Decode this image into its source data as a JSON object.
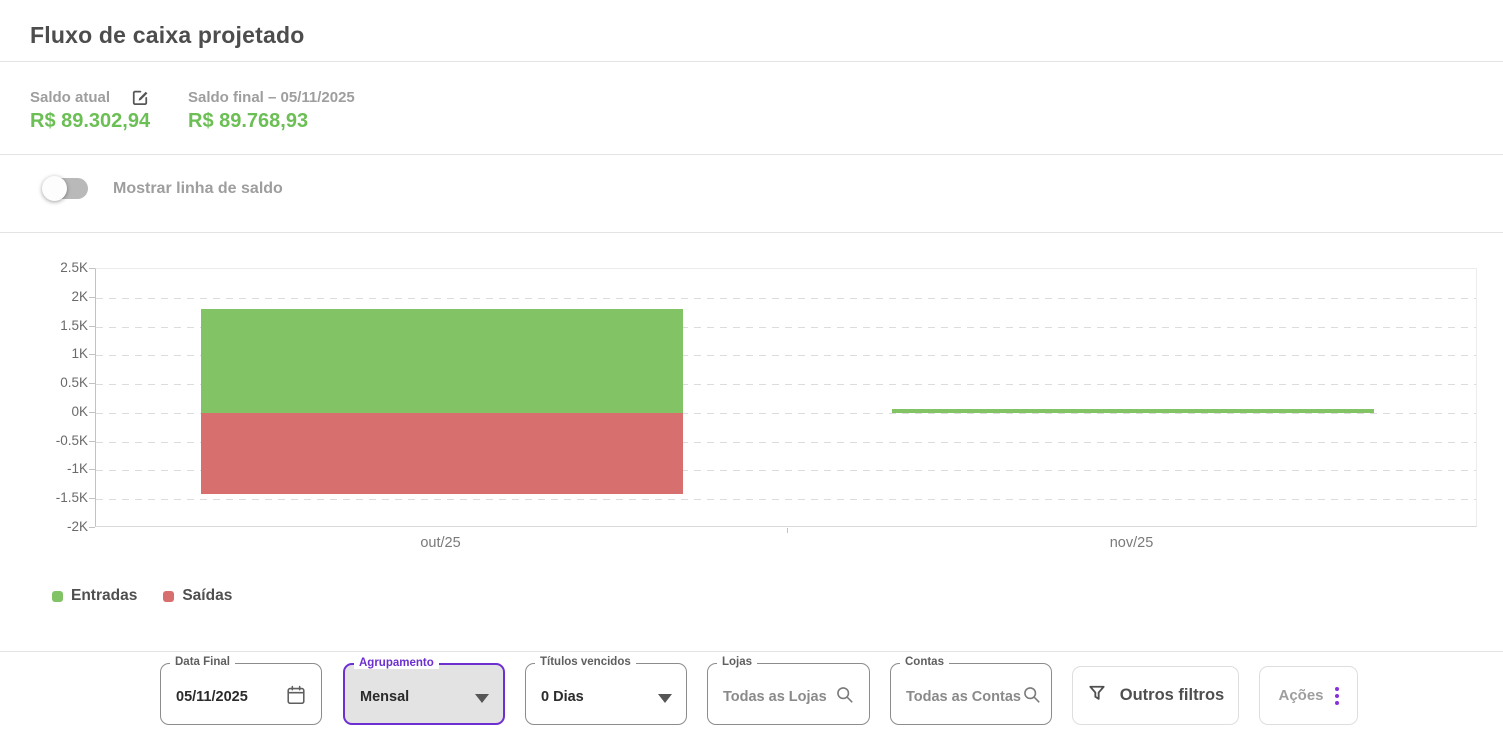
{
  "header": {
    "title": "Fluxo de caixa projetado"
  },
  "balances": {
    "current": {
      "label": "Saldo atual",
      "value": "R$ 89.302,94",
      "edit_icon": "edit-square-icon"
    },
    "final": {
      "label": "Saldo final – 05/11/2025",
      "value": "R$ 89.768,93"
    }
  },
  "balance_toggle": {
    "label": "Mostrar linha de saldo",
    "checked": false
  },
  "chart_data": {
    "type": "bar",
    "categories": [
      "out/25",
      "nov/25"
    ],
    "series": [
      {
        "name": "Entradas",
        "color": "#82c366",
        "values": [
          1805,
          75
        ]
      },
      {
        "name": "Saídas",
        "color": "#d66f6e",
        "values": [
          -1410,
          0
        ]
      }
    ],
    "ylim": [
      -2000,
      2500
    ],
    "yticks": [
      {
        "value": 2500,
        "label": "2.5K"
      },
      {
        "value": 2000,
        "label": "2K"
      },
      {
        "value": 1500,
        "label": "1.5K"
      },
      {
        "value": 1000,
        "label": "1K"
      },
      {
        "value": 500,
        "label": "0.5K"
      },
      {
        "value": 0,
        "label": "0K"
      },
      {
        "value": -500,
        "label": "-0.5K"
      },
      {
        "value": -1000,
        "label": "-1K"
      },
      {
        "value": -1500,
        "label": "-1.5K"
      },
      {
        "value": -2000,
        "label": "-2K"
      }
    ],
    "grid": "horizontal-dashed",
    "legend_position": "bottom-left",
    "title": "",
    "xlabel": "",
    "ylabel": ""
  },
  "filters": {
    "data_final": {
      "label": "Data Final",
      "value": "05/11/2025",
      "icon": "calendar-icon"
    },
    "agrupamento": {
      "label": "Agrupamento",
      "value": "Mensal",
      "icon": "dropdown-arrow-icon"
    },
    "titulos_vencidos": {
      "label": "Títulos vencidos",
      "value": "0 Dias",
      "icon": "dropdown-arrow-icon"
    },
    "lojas": {
      "label": "Lojas",
      "placeholder": "Todas as Lojas",
      "icon": "search-icon"
    },
    "contas": {
      "label": "Contas",
      "placeholder": "Todas as Contas",
      "icon": "search-icon"
    },
    "outros_filtros": {
      "label": "Outros filtros",
      "icon": "filter-icon"
    },
    "acoes": {
      "label": "Ações",
      "icon": "kebab-menu-icon"
    }
  },
  "colors": {
    "balance_green": "#6bbf55",
    "bar_green": "#82c366",
    "bar_red": "#d66f6e",
    "accent_purple": "#6d2fd0",
    "kebab_purple": "#8b30d9"
  }
}
